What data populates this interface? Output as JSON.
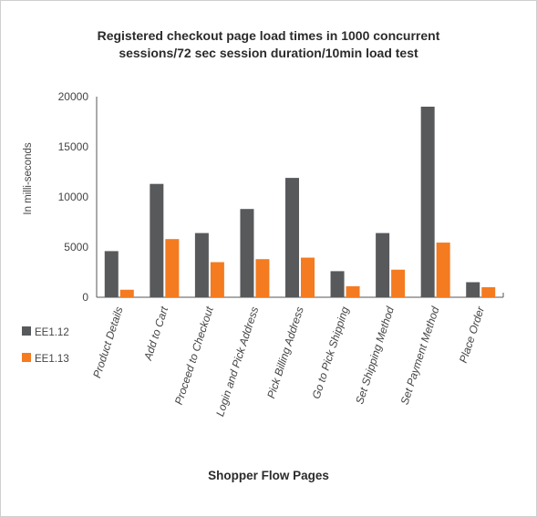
{
  "chart_data": {
    "type": "bar",
    "title_line1": "Registered checkout page load times in 1000 concurrent",
    "title_line2": "sessions/72 sec session duration/10min load test",
    "xlabel": "Shopper Flow Pages",
    "ylabel": "In milli-seconds",
    "ylim": [
      0,
      20000
    ],
    "yticks": [
      0,
      5000,
      10000,
      15000,
      20000
    ],
    "grid": false,
    "legend_position": "left",
    "categories": [
      "Product Details",
      "Add to Cart",
      "Proceed to Checkout",
      "Login and Pick Address",
      "Pick Billing Address",
      "Go to Pick Shipping",
      "Set Shipping Method",
      "Set Payment Method",
      "Place Order"
    ],
    "series": [
      {
        "name": "EE1.12",
        "color": "#58595b",
        "values": [
          4600,
          11300,
          6400,
          8800,
          11900,
          2600,
          6400,
          19000,
          1500
        ]
      },
      {
        "name": "EE1.13",
        "color": "#f47b20",
        "values": [
          750,
          5800,
          3500,
          3800,
          3950,
          1100,
          2750,
          5450,
          1000
        ]
      }
    ]
  }
}
